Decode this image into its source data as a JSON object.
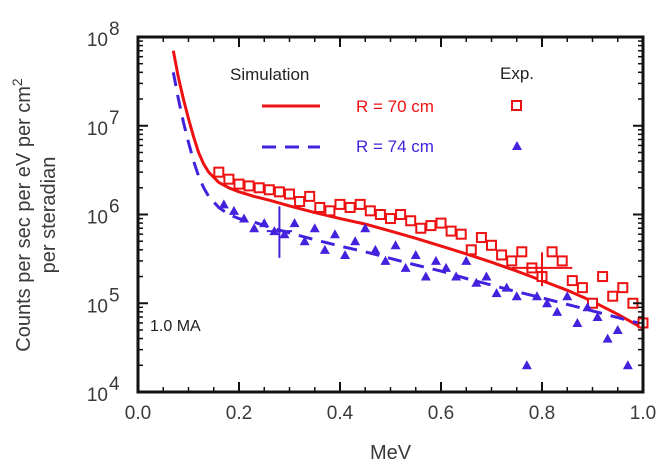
{
  "chart_data": {
    "type": "scatter",
    "xlabel": "MeV",
    "ylabel_line1": "Counts per sec per eV per cm",
    "ylabel_sup": "2",
    "ylabel_line2": "per steradian",
    "xlim": [
      0.0,
      1.0
    ],
    "ylim": [
      10000,
      100000000
    ],
    "yscale": "log",
    "x_ticks": [
      "0.0",
      "0.2",
      "0.4",
      "0.6",
      "0.8",
      "1.0"
    ],
    "y_ticks": [
      {
        "base": "10",
        "exp": "4"
      },
      {
        "base": "10",
        "exp": "5"
      },
      {
        "base": "10",
        "exp": "6"
      },
      {
        "base": "10",
        "exp": "7"
      },
      {
        "base": "10",
        "exp": "8"
      }
    ],
    "annotation": "1.0 MA",
    "legend": {
      "sim_header": "Simulation",
      "exp_header": "Exp.",
      "entries": [
        "R = 70 cm",
        "R = 74 cm"
      ]
    },
    "colors": {
      "r70": "#ee1111",
      "r74": "#4422dd",
      "axis": "#111111"
    },
    "series": [
      {
        "name": "R = 70 cm",
        "kind": "simulation",
        "style": "solid",
        "x": [
          0.07,
          0.08,
          0.09,
          0.1,
          0.11,
          0.12,
          0.13,
          0.14,
          0.16,
          0.18,
          0.2,
          0.23,
          0.26,
          0.3,
          0.35,
          0.4,
          0.45,
          0.5,
          0.55,
          0.6,
          0.65,
          0.7,
          0.75,
          0.8,
          0.85,
          0.9,
          0.95,
          1.0
        ],
        "y": [
          70000000,
          35000000,
          20000000,
          12000000,
          7500000,
          5000000,
          3700000,
          3000000,
          2300000,
          2000000,
          1800000,
          1600000,
          1450000,
          1250000,
          1050000,
          900000,
          780000,
          650000,
          540000,
          440000,
          360000,
          290000,
          230000,
          180000,
          140000,
          105000,
          75000,
          52000
        ]
      },
      {
        "name": "R = 74 cm",
        "kind": "simulation",
        "style": "dashed",
        "x": [
          0.07,
          0.08,
          0.09,
          0.1,
          0.11,
          0.12,
          0.13,
          0.14,
          0.16,
          0.18,
          0.2,
          0.23,
          0.26,
          0.3,
          0.35,
          0.4,
          0.45,
          0.5,
          0.55,
          0.6,
          0.65,
          0.7,
          0.75,
          0.8,
          0.85,
          0.9,
          0.95,
          1.0
        ],
        "y": [
          40000000,
          20000000,
          11000000,
          6500000,
          4000000,
          2700000,
          2000000,
          1600000,
          1200000,
          1000000,
          900000,
          820000,
          720000,
          620000,
          520000,
          440000,
          380000,
          320000,
          270000,
          230000,
          190000,
          160000,
          135000,
          115000,
          97000,
          82000,
          69000,
          58000
        ]
      },
      {
        "name": "R = 70 cm",
        "kind": "experiment",
        "marker": "open-square",
        "x": [
          0.16,
          0.18,
          0.2,
          0.22,
          0.24,
          0.26,
          0.28,
          0.3,
          0.32,
          0.34,
          0.36,
          0.38,
          0.4,
          0.42,
          0.44,
          0.46,
          0.48,
          0.5,
          0.52,
          0.54,
          0.56,
          0.58,
          0.6,
          0.62,
          0.64,
          0.66,
          0.68,
          0.7,
          0.72,
          0.74,
          0.76,
          0.78,
          0.8,
          0.82,
          0.84,
          0.86,
          0.88,
          0.9,
          0.92,
          0.94,
          0.96,
          0.98,
          1.0
        ],
        "y": [
          3000000,
          2500000,
          2200000,
          2100000,
          2000000,
          1900000,
          1800000,
          1700000,
          1400000,
          1600000,
          1200000,
          1100000,
          1300000,
          1200000,
          1300000,
          1100000,
          1000000,
          900000,
          1000000,
          850000,
          700000,
          750000,
          800000,
          650000,
          600000,
          400000,
          550000,
          450000,
          350000,
          300000,
          380000,
          250000,
          200000,
          380000,
          300000,
          180000,
          150000,
          100000,
          200000,
          120000,
          150000,
          100000,
          60000
        ]
      },
      {
        "name": "R = 74 cm",
        "kind": "experiment",
        "marker": "filled-triangle",
        "x": [
          0.17,
          0.19,
          0.21,
          0.23,
          0.25,
          0.27,
          0.29,
          0.31,
          0.33,
          0.35,
          0.37,
          0.39,
          0.41,
          0.43,
          0.45,
          0.47,
          0.49,
          0.51,
          0.53,
          0.55,
          0.57,
          0.59,
          0.61,
          0.63,
          0.65,
          0.67,
          0.69,
          0.71,
          0.73,
          0.75,
          0.77,
          0.79,
          0.81,
          0.83,
          0.85,
          0.87,
          0.89,
          0.91,
          0.93,
          0.95,
          0.97
        ],
        "y": [
          1300000,
          1100000,
          900000,
          700000,
          800000,
          650000,
          600000,
          800000,
          500000,
          700000,
          400000,
          600000,
          350000,
          500000,
          700000,
          400000,
          300000,
          450000,
          250000,
          350000,
          200000,
          300000,
          250000,
          200000,
          300000,
          170000,
          200000,
          130000,
          150000,
          120000,
          20000,
          120000,
          100000,
          80000,
          120000,
          60000,
          90000,
          70000,
          40000,
          50000,
          20000
        ]
      }
    ]
  }
}
